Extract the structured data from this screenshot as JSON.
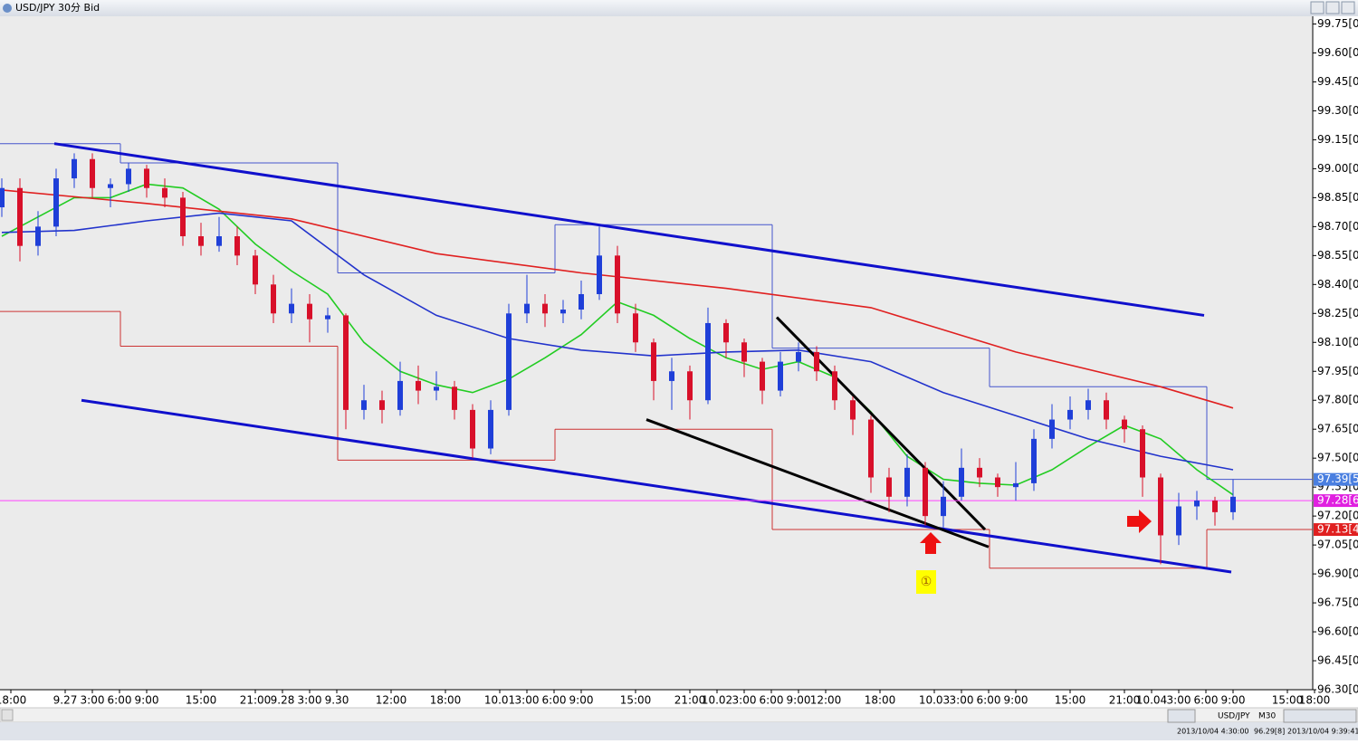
{
  "chart_data": {
    "type": "candlestick",
    "title": "USD/JPY 30分 Bid",
    "xlim": [
      -1.2,
      143.8
    ],
    "ylim": [
      96.3,
      99.79
    ],
    "xticks": [
      {
        "value": 0,
        "label": "18:00"
      },
      {
        "value": 6,
        "label": "9.27"
      },
      {
        "value": 9,
        "label": "3:00"
      },
      {
        "value": 12,
        "label": "6:00"
      },
      {
        "value": 15,
        "label": "9:00"
      },
      {
        "value": 21,
        "label": "15:00"
      },
      {
        "value": 27,
        "label": "21:00"
      },
      {
        "value": 30,
        "label": "9.28"
      },
      {
        "value": 33,
        "label": "3:00"
      },
      {
        "value": 36,
        "label": "9.30"
      },
      {
        "value": 42,
        "label": "12:00"
      },
      {
        "value": 48,
        "label": "18:00"
      },
      {
        "value": 54,
        "label": "10.01"
      },
      {
        "value": 57,
        "label": "3:00"
      },
      {
        "value": 60,
        "label": "6:00"
      },
      {
        "value": 63,
        "label": "9:00"
      },
      {
        "value": 69,
        "label": "15:00"
      },
      {
        "value": 75,
        "label": "21:00"
      },
      {
        "value": 78,
        "label": "10.02"
      },
      {
        "value": 81,
        "label": "3:00"
      },
      {
        "value": 84,
        "label": "6:00"
      },
      {
        "value": 87,
        "label": "9:00"
      },
      {
        "value": 90,
        "label": "12:00"
      },
      {
        "value": 96,
        "label": "18:00"
      },
      {
        "value": 102,
        "label": "10.03"
      },
      {
        "value": 105,
        "label": "3:00"
      },
      {
        "value": 108,
        "label": "6:00"
      },
      {
        "value": 111,
        "label": "9:00"
      },
      {
        "value": 117,
        "label": "15:00"
      },
      {
        "value": 123,
        "label": "21:00"
      },
      {
        "value": 126,
        "label": "10.04"
      },
      {
        "value": 129,
        "label": "3:00"
      },
      {
        "value": 132,
        "label": "6:00"
      },
      {
        "value": 135,
        "label": "9:00"
      },
      {
        "value": 141,
        "label": "15:00"
      },
      {
        "value": 144,
        "label": "18:00"
      }
    ],
    "yticks": [
      {
        "value": 99.75,
        "label": "99.75[0]"
      },
      {
        "value": 99.6,
        "label": "99.60[0]"
      },
      {
        "value": 99.45,
        "label": "99.45[0]"
      },
      {
        "value": 99.3,
        "label": "99.30[0]"
      },
      {
        "value": 99.15,
        "label": "99.15[0]"
      },
      {
        "value": 99.0,
        "label": "99.00[0]"
      },
      {
        "value": 98.85,
        "label": "98.85[0]"
      },
      {
        "value": 98.7,
        "label": "98.70[0]"
      },
      {
        "value": 98.55,
        "label": "98.55[0]"
      },
      {
        "value": 98.4,
        "label": "98.40[0]"
      },
      {
        "value": 98.25,
        "label": "98.25[0]"
      },
      {
        "value": 98.1,
        "label": "98.10[0]"
      },
      {
        "value": 97.95,
        "label": "97.95[0]"
      },
      {
        "value": 97.8,
        "label": "97.80[0]"
      },
      {
        "value": 97.65,
        "label": "97.65[0]"
      },
      {
        "value": 97.5,
        "label": "97.50[0]"
      },
      {
        "value": 97.35,
        "label": "97.35[0]"
      },
      {
        "value": 97.2,
        "label": "97.20[0]"
      },
      {
        "value": 97.05,
        "label": "97.05[0]"
      },
      {
        "value": 96.9,
        "label": "96.90[0]"
      },
      {
        "value": 96.75,
        "label": "96.75[0]"
      },
      {
        "value": 96.6,
        "label": "96.60[0]"
      },
      {
        "value": 96.45,
        "label": "96.45[0]"
      },
      {
        "value": 96.3,
        "label": "96.30[0]"
      }
    ],
    "up_color": "#1f3fd8",
    "down_color": "#d8102a",
    "x": [
      -1,
      1,
      3,
      5,
      7,
      9,
      11,
      13,
      15,
      17,
      19,
      21,
      23,
      25,
      27,
      29,
      31,
      33,
      35,
      37,
      39,
      41,
      43,
      45,
      47,
      49,
      51,
      53,
      55,
      57,
      59,
      61,
      63,
      65,
      67,
      69,
      71,
      73,
      75,
      77,
      79,
      81,
      83,
      85,
      87,
      89,
      91,
      93,
      95,
      97,
      99,
      101,
      103,
      105,
      107,
      109,
      111,
      113,
      115,
      117,
      119,
      121,
      123,
      125,
      127,
      129,
      131,
      133,
      135
    ],
    "ohlc": [
      [
        98.8,
        98.95,
        98.75,
        98.9
      ],
      [
        98.9,
        98.95,
        98.52,
        98.6
      ],
      [
        98.6,
        98.78,
        98.55,
        98.7
      ],
      [
        98.7,
        99.0,
        98.65,
        98.95
      ],
      [
        98.95,
        99.08,
        98.9,
        99.05
      ],
      [
        99.05,
        99.08,
        98.85,
        98.9
      ],
      [
        98.9,
        98.95,
        98.8,
        98.92
      ],
      [
        98.92,
        99.03,
        98.88,
        99.0
      ],
      [
        99.0,
        99.02,
        98.85,
        98.9
      ],
      [
        98.9,
        98.95,
        98.8,
        98.85
      ],
      [
        98.85,
        98.88,
        98.6,
        98.65
      ],
      [
        98.65,
        98.72,
        98.55,
        98.6
      ],
      [
        98.6,
        98.75,
        98.57,
        98.65
      ],
      [
        98.65,
        98.7,
        98.5,
        98.55
      ],
      [
        98.55,
        98.58,
        98.35,
        98.4
      ],
      [
        98.4,
        98.45,
        98.2,
        98.25
      ],
      [
        98.25,
        98.38,
        98.2,
        98.3
      ],
      [
        98.3,
        98.35,
        98.1,
        98.22
      ],
      [
        98.22,
        98.28,
        98.15,
        98.24
      ],
      [
        98.24,
        98.25,
        97.65,
        97.75
      ],
      [
        97.75,
        97.88,
        97.7,
        97.8
      ],
      [
        97.8,
        97.85,
        97.68,
        97.75
      ],
      [
        97.75,
        98.0,
        97.72,
        97.9
      ],
      [
        97.9,
        97.98,
        97.78,
        97.85
      ],
      [
        97.85,
        97.95,
        97.8,
        97.87
      ],
      [
        97.87,
        97.9,
        97.7,
        97.75
      ],
      [
        97.75,
        97.78,
        97.5,
        97.55
      ],
      [
        97.55,
        97.8,
        97.52,
        97.75
      ],
      [
        97.75,
        98.3,
        97.72,
        98.25
      ],
      [
        98.25,
        98.45,
        98.2,
        98.3
      ],
      [
        98.3,
        98.35,
        98.18,
        98.25
      ],
      [
        98.25,
        98.32,
        98.2,
        98.27
      ],
      [
        98.27,
        98.42,
        98.22,
        98.35
      ],
      [
        98.35,
        98.7,
        98.32,
        98.55
      ],
      [
        98.55,
        98.6,
        98.2,
        98.25
      ],
      [
        98.25,
        98.3,
        98.05,
        98.1
      ],
      [
        98.1,
        98.12,
        97.8,
        97.9
      ],
      [
        97.9,
        98.02,
        97.75,
        97.95
      ],
      [
        97.95,
        97.98,
        97.7,
        97.8
      ],
      [
        97.8,
        98.28,
        97.78,
        98.2
      ],
      [
        98.2,
        98.22,
        98.02,
        98.1
      ],
      [
        98.1,
        98.12,
        97.92,
        98.0
      ],
      [
        98.0,
        98.02,
        97.78,
        97.85
      ],
      [
        97.85,
        98.05,
        97.82,
        98.0
      ],
      [
        98.0,
        98.1,
        97.95,
        98.05
      ],
      [
        98.05,
        98.08,
        97.9,
        97.95
      ],
      [
        97.95,
        97.98,
        97.75,
        97.8
      ],
      [
        97.8,
        97.82,
        97.62,
        97.7
      ],
      [
        97.7,
        97.72,
        97.32,
        97.4
      ],
      [
        97.4,
        97.45,
        97.22,
        97.3
      ],
      [
        97.3,
        97.52,
        97.25,
        97.45
      ],
      [
        97.45,
        97.48,
        97.15,
        97.2
      ],
      [
        97.2,
        97.38,
        97.14,
        97.3
      ],
      [
        97.3,
        97.55,
        97.28,
        97.45
      ],
      [
        97.45,
        97.5,
        97.35,
        97.4
      ],
      [
        97.4,
        97.42,
        97.3,
        97.35
      ],
      [
        97.35,
        97.48,
        97.28,
        97.37
      ],
      [
        97.37,
        97.65,
        97.33,
        97.6
      ],
      [
        97.6,
        97.78,
        97.55,
        97.7
      ],
      [
        97.7,
        97.82,
        97.65,
        97.75
      ],
      [
        97.75,
        97.86,
        97.7,
        97.8
      ],
      [
        97.8,
        97.84,
        97.65,
        97.7
      ],
      [
        97.7,
        97.72,
        97.58,
        97.65
      ],
      [
        97.65,
        97.67,
        97.3,
        97.4
      ],
      [
        97.4,
        97.42,
        96.95,
        97.1
      ],
      [
        97.1,
        97.32,
        97.05,
        97.25
      ],
      [
        97.25,
        97.33,
        97.18,
        97.28
      ],
      [
        97.28,
        97.3,
        97.15,
        97.22
      ],
      [
        97.22,
        97.39,
        97.18,
        97.3
      ]
    ],
    "overlays": [
      {
        "color": "#22cc22",
        "x": [
          -1,
          3,
          7,
          11,
          15,
          19,
          23,
          27,
          31,
          35,
          39,
          43,
          47,
          51,
          55,
          59,
          63,
          67,
          71,
          75,
          79,
          83,
          87,
          91,
          95,
          99,
          103,
          107,
          111,
          115,
          119,
          123,
          127,
          131,
          135
        ],
        "values": [
          98.65,
          98.75,
          98.85,
          98.85,
          98.92,
          98.9,
          98.79,
          98.61,
          98.47,
          98.35,
          98.1,
          97.95,
          97.88,
          97.84,
          97.91,
          98.02,
          98.14,
          98.31,
          98.24,
          98.12,
          98.02,
          97.96,
          98.0,
          97.92,
          97.74,
          97.51,
          97.39,
          97.37,
          97.36,
          97.44,
          97.56,
          97.67,
          97.6,
          97.44,
          97.31
        ]
      },
      {
        "color": "#2233cc",
        "x": [
          -1,
          7,
          15,
          23,
          31,
          39,
          47,
          55,
          63,
          71,
          79,
          87,
          95,
          103,
          111,
          119,
          127,
          135
        ],
        "values": [
          98.67,
          98.68,
          98.73,
          98.77,
          98.73,
          98.45,
          98.24,
          98.12,
          98.06,
          98.03,
          98.05,
          98.06,
          98.0,
          97.84,
          97.72,
          97.6,
          97.51,
          97.44
        ]
      },
      {
        "color": "#e02020",
        "x": [
          -1,
          15,
          31,
          47,
          63,
          79,
          95,
          111,
          127,
          135
        ],
        "values": [
          98.89,
          98.82,
          98.74,
          98.56,
          98.46,
          98.38,
          98.28,
          98.05,
          97.87,
          97.76
        ]
      }
    ],
    "trendlines": [
      {
        "color": "#1010cc",
        "x": [
          4.8,
          131.8
        ],
        "values": [
          99.13,
          98.24
        ]
      },
      {
        "color": "#1010cc",
        "x": [
          7.8,
          134.8
        ],
        "values": [
          97.8,
          96.91
        ]
      },
      {
        "color": "#000000",
        "x": [
          84.6,
          107.6
        ],
        "values": [
          98.23,
          97.13
        ]
      },
      {
        "color": "#000000",
        "x": [
          70.2,
          108.0
        ],
        "values": [
          97.7,
          97.04
        ]
      }
    ],
    "ranges": [
      {
        "x": [
          -1.2,
          12.1
        ],
        "high": 99.13,
        "low": 98.26
      },
      {
        "x": [
          12.1,
          36.1
        ],
        "high": 99.03,
        "low": 98.08
      },
      {
        "x": [
          36.1,
          60.1
        ],
        "high": 98.46,
        "low": 97.49
      },
      {
        "x": [
          60.1,
          84.1
        ],
        "high": 98.71,
        "low": 97.65
      },
      {
        "x": [
          84.1,
          108.1
        ],
        "high": 98.07,
        "low": 97.13
      },
      {
        "x": [
          108.1,
          132.1
        ],
        "high": 97.87,
        "low": 96.93
      },
      {
        "x": [
          132.1,
          143.8
        ],
        "high": 97.39,
        "low": 97.13
      }
    ],
    "price_markers": [
      {
        "value": 97.39,
        "label": "97.39[5]",
        "color": "#4a7fe0"
      },
      {
        "value": 97.28,
        "label": "97.28[6]",
        "color": "#e020e0"
      },
      {
        "value": 97.13,
        "label": "97.13[4]",
        "color": "#e02020"
      }
    ],
    "hline": {
      "value": 97.28,
      "color": "#ff44ff"
    },
    "annotation": "①"
  },
  "status_bar": {
    "symbol": "USD/JPY",
    "timeframe": "M30",
    "from": "2013/10/04 4:30:00",
    "price": "96.29[8]",
    "to": "2013/10/04 9:39:41"
  }
}
